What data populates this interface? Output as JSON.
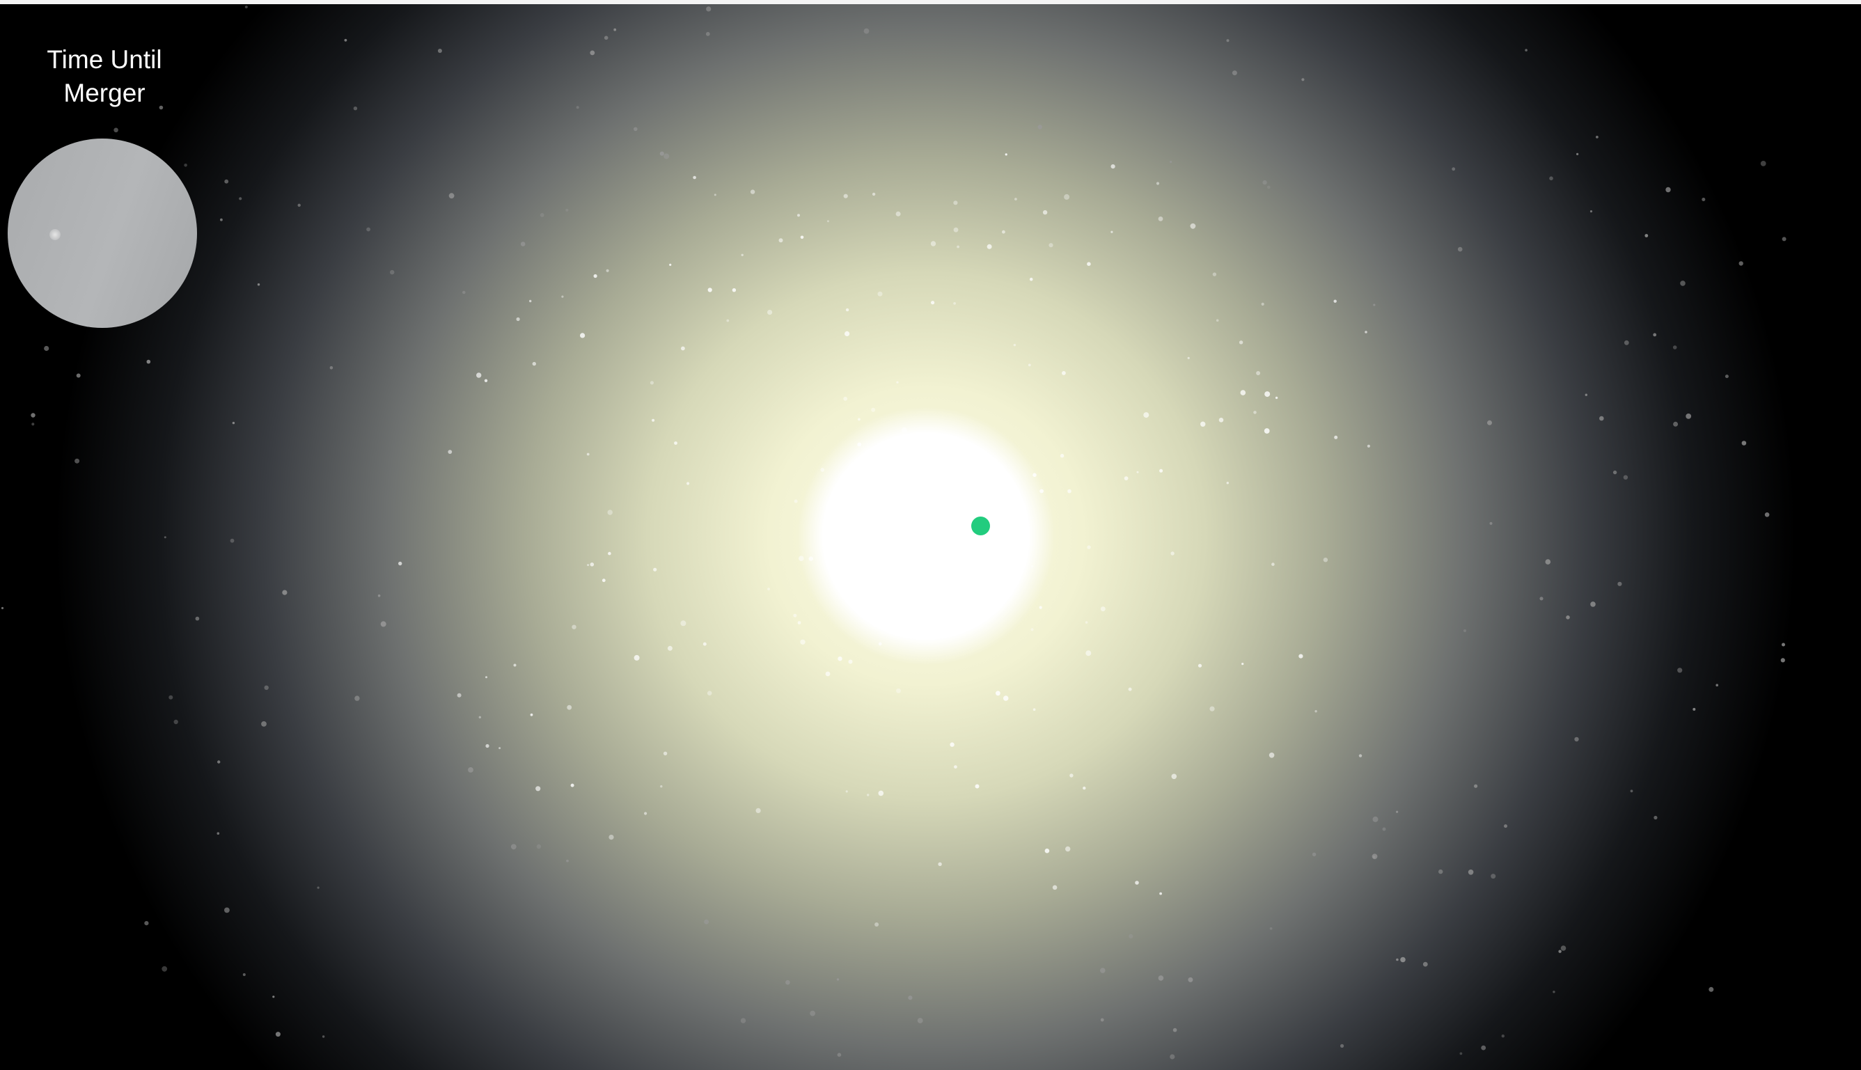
{
  "hud": {
    "label": "Time Until Merger"
  }
}
